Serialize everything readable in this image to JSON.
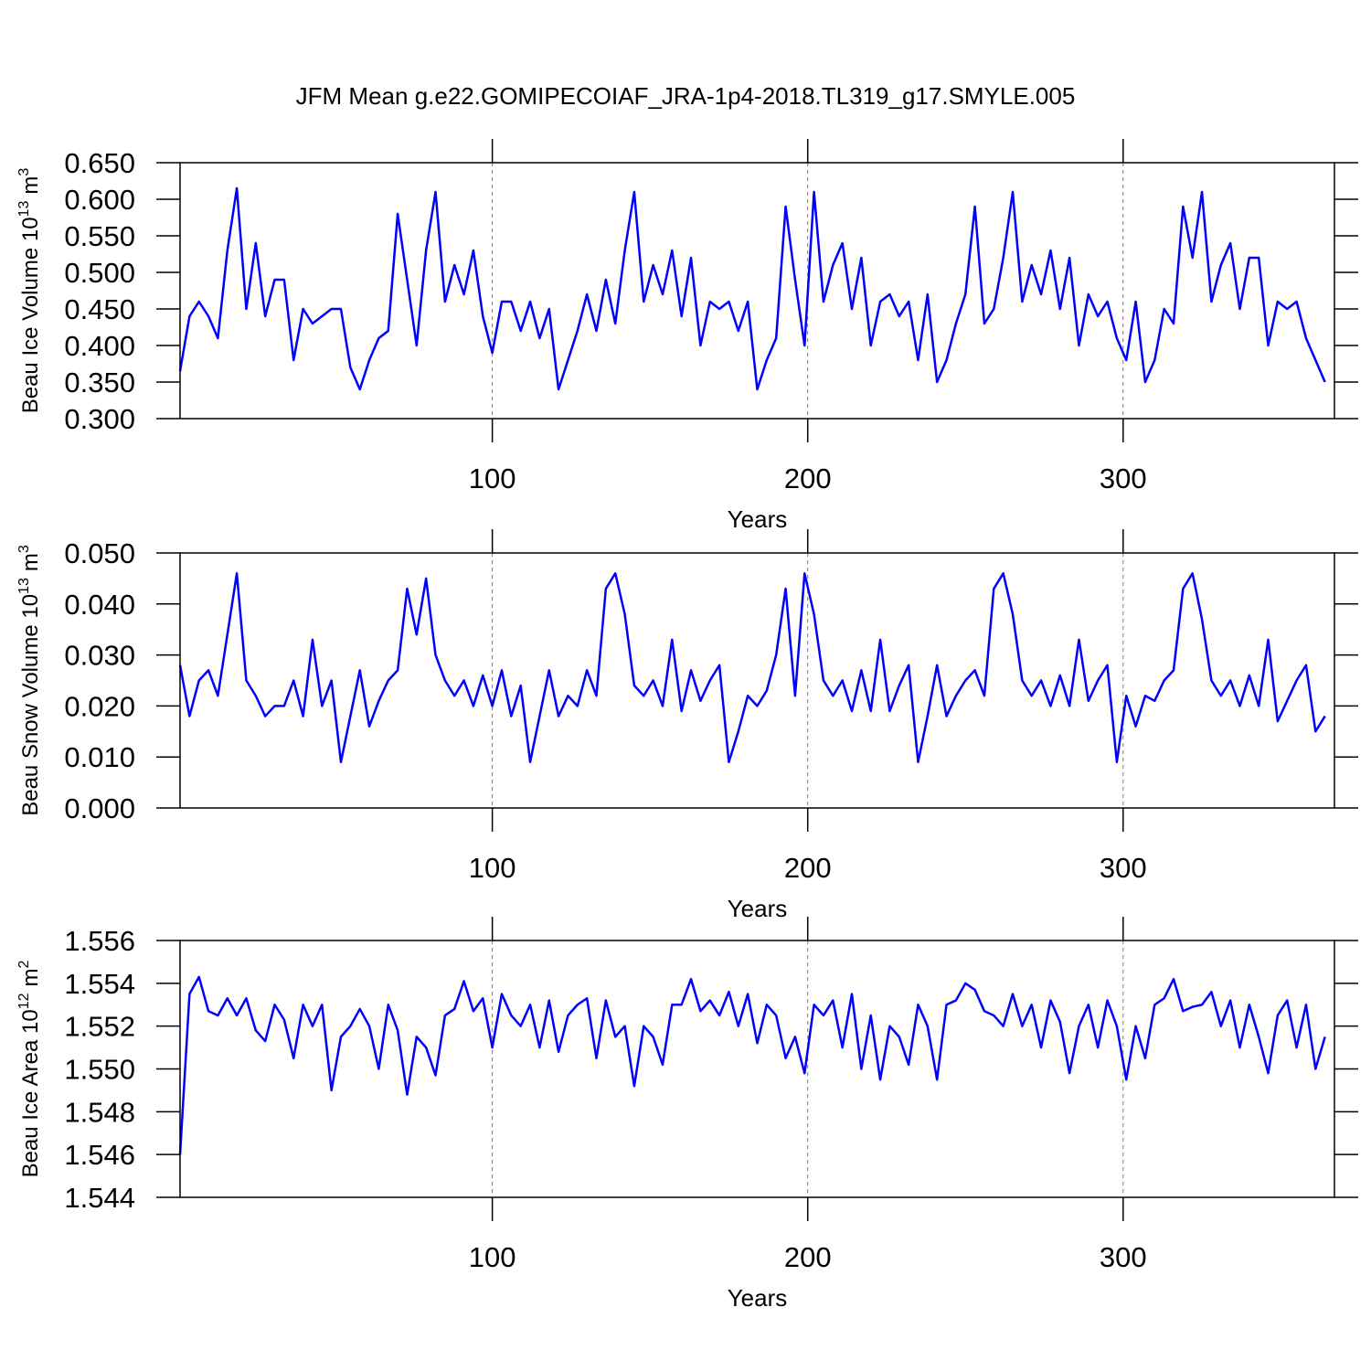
{
  "title": "JFM Mean g.e22.GOMIPECOIAF_JRA-1p4-2018.TL319_g17.SMYLE.005",
  "chart_data": [
    {
      "type": "line",
      "xlabel": "Years",
      "ylabel": "Beau Ice Volume 10",
      "ylabel_power": "13",
      "ylabel_unit": "m",
      "ylabel_unit_power": "3",
      "xlim": [
        1,
        367
      ],
      "xticks": [
        100,
        200,
        300
      ],
      "xgrid": true,
      "ylim": [
        0.3,
        0.65
      ],
      "yticks": [
        {
          "value": 0.3,
          "label": "0.300"
        },
        {
          "value": 0.35,
          "label": "0.350"
        },
        {
          "value": 0.4,
          "label": "0.400"
        },
        {
          "value": 0.45,
          "label": "0.450"
        },
        {
          "value": 0.5,
          "label": "0.500"
        },
        {
          "value": 0.55,
          "label": "0.550"
        },
        {
          "value": 0.6,
          "label": "0.600"
        },
        {
          "value": 0.65,
          "label": "0.650"
        }
      ],
      "x": [
        1,
        4,
        7,
        10,
        13,
        16,
        19,
        22,
        25,
        28,
        31,
        34,
        37,
        40,
        43,
        46,
        49,
        52,
        55,
        58,
        61,
        64,
        67,
        70,
        73,
        76,
        79,
        82,
        85,
        88,
        91,
        94,
        97,
        100,
        103,
        106,
        109,
        112,
        115,
        118,
        121,
        124,
        127,
        130,
        133,
        136,
        139,
        142,
        145,
        148,
        151,
        154,
        157,
        160,
        163,
        166,
        169,
        172,
        175,
        178,
        181,
        184,
        187,
        190,
        193,
        196,
        199,
        202,
        205,
        208,
        211,
        214,
        217,
        220,
        223,
        226,
        229,
        232,
        235,
        238,
        241,
        244,
        247,
        250,
        253,
        256,
        259,
        262,
        265,
        268,
        271,
        274,
        277,
        280,
        283,
        286,
        289,
        292,
        295,
        298,
        301,
        304,
        307,
        310,
        313,
        316,
        319,
        322,
        325,
        328,
        331,
        334,
        337,
        340,
        343,
        346,
        349,
        352,
        355,
        358,
        361,
        364
      ],
      "series": [
        {
          "color": "#0000ff",
          "values": [
            0.365,
            0.44,
            0.46,
            0.44,
            0.41,
            0.53,
            0.615,
            0.45,
            0.54,
            0.44,
            0.49,
            0.49,
            0.38,
            0.45,
            0.43,
            0.44,
            0.45,
            0.45,
            0.37,
            0.34,
            0.38,
            0.41,
            0.42,
            0.58,
            0.49,
            0.4,
            0.53,
            0.61,
            0.46,
            0.51,
            0.47,
            0.53,
            0.44,
            0.39,
            0.46,
            0.46,
            0.42,
            0.46,
            0.41,
            0.45,
            0.34,
            0.38,
            0.42,
            0.47,
            0.42,
            0.49,
            0.43,
            0.53,
            0.61,
            0.46,
            0.51,
            0.47,
            0.53,
            0.44,
            0.52,
            0.4,
            0.46,
            0.45,
            0.46,
            0.42,
            0.46,
            0.34,
            0.38,
            0.41,
            0.59,
            0.49,
            0.4,
            0.61,
            0.46,
            0.51,
            0.54,
            0.45,
            0.52,
            0.4,
            0.46,
            0.47,
            0.44,
            0.46,
            0.38,
            0.47,
            0.35,
            0.38,
            0.43,
            0.47,
            0.59,
            0.43,
            0.45,
            0.52,
            0.61,
            0.46,
            0.51,
            0.47,
            0.53,
            0.45,
            0.52,
            0.4,
            0.47,
            0.44,
            0.46,
            0.41,
            0.38,
            0.46,
            0.35,
            0.38,
            0.45,
            0.43,
            0.59,
            0.52,
            0.61,
            0.46,
            0.51,
            0.54,
            0.45,
            0.52,
            0.52,
            0.4,
            0.46,
            0.45,
            0.46,
            0.41,
            0.38,
            0.35
          ]
        }
      ]
    },
    {
      "type": "line",
      "xlabel": "Years",
      "ylabel": "Beau Snow Volume 10",
      "ylabel_power": "13",
      "ylabel_unit": "m",
      "ylabel_unit_power": "3",
      "xlim": [
        1,
        367
      ],
      "xticks": [
        100,
        200,
        300
      ],
      "xgrid": true,
      "ylim": [
        0,
        0.05
      ],
      "yticks": [
        {
          "value": 0,
          "label": "0.000"
        },
        {
          "value": 0.01,
          "label": "0.010"
        },
        {
          "value": 0.02,
          "label": "0.020"
        },
        {
          "value": 0.03,
          "label": "0.030"
        },
        {
          "value": 0.04,
          "label": "0.040"
        },
        {
          "value": 0.05,
          "label": "0.050"
        }
      ],
      "x": [
        1,
        4,
        7,
        10,
        13,
        16,
        19,
        22,
        25,
        28,
        31,
        34,
        37,
        40,
        43,
        46,
        49,
        52,
        55,
        58,
        61,
        64,
        67,
        70,
        73,
        76,
        79,
        82,
        85,
        88,
        91,
        94,
        97,
        100,
        103,
        106,
        109,
        112,
        115,
        118,
        121,
        124,
        127,
        130,
        133,
        136,
        139,
        142,
        145,
        148,
        151,
        154,
        157,
        160,
        163,
        166,
        169,
        172,
        175,
        178,
        181,
        184,
        187,
        190,
        193,
        196,
        199,
        202,
        205,
        208,
        211,
        214,
        217,
        220,
        223,
        226,
        229,
        232,
        235,
        238,
        241,
        244,
        247,
        250,
        253,
        256,
        259,
        262,
        265,
        268,
        271,
        274,
        277,
        280,
        283,
        286,
        289,
        292,
        295,
        298,
        301,
        304,
        307,
        310,
        313,
        316,
        319,
        322,
        325,
        328,
        331,
        334,
        337,
        340,
        343,
        346,
        349,
        352,
        355,
        358,
        361,
        364
      ],
      "series": [
        {
          "color": "#0000ff",
          "values": [
            0.028,
            0.018,
            0.025,
            0.027,
            0.022,
            0.034,
            0.046,
            0.025,
            0.022,
            0.018,
            0.02,
            0.02,
            0.025,
            0.018,
            0.033,
            0.02,
            0.025,
            0.009,
            0.018,
            0.027,
            0.016,
            0.021,
            0.025,
            0.027,
            0.043,
            0.034,
            0.045,
            0.03,
            0.025,
            0.022,
            0.025,
            0.02,
            0.026,
            0.02,
            0.027,
            0.018,
            0.024,
            0.009,
            0.018,
            0.027,
            0.018,
            0.022,
            0.02,
            0.027,
            0.022,
            0.043,
            0.046,
            0.038,
            0.024,
            0.022,
            0.025,
            0.02,
            0.033,
            0.019,
            0.027,
            0.021,
            0.025,
            0.028,
            0.009,
            0.015,
            0.022,
            0.02,
            0.023,
            0.03,
            0.043,
            0.022,
            0.046,
            0.038,
            0.025,
            0.022,
            0.025,
            0.019,
            0.027,
            0.019,
            0.033,
            0.019,
            0.024,
            0.028,
            0.009,
            0.018,
            0.028,
            0.018,
            0.022,
            0.025,
            0.027,
            0.022,
            0.043,
            0.046,
            0.038,
            0.025,
            0.022,
            0.025,
            0.02,
            0.026,
            0.02,
            0.033,
            0.021,
            0.025,
            0.028,
            0.009,
            0.022,
            0.016,
            0.022,
            0.021,
            0.025,
            0.027,
            0.043,
            0.046,
            0.037,
            0.025,
            0.022,
            0.025,
            0.02,
            0.026,
            0.02,
            0.033,
            0.017,
            0.021,
            0.025,
            0.028,
            0.015,
            0.018
          ]
        }
      ]
    },
    {
      "type": "line",
      "xlabel": "Years",
      "ylabel": "Beau Ice Area 10",
      "ylabel_power": "12",
      "ylabel_unit": "m",
      "ylabel_unit_power": "2",
      "xlim": [
        1,
        367
      ],
      "xticks": [
        100,
        200,
        300
      ],
      "xgrid": true,
      "ylim": [
        1.544,
        1.556
      ],
      "yticks": [
        1.544,
        1.546,
        1.548,
        {
          "value": 1.55,
          "label": "1.550"
        },
        1.552,
        1.554,
        1.556
      ],
      "x": [
        1,
        4,
        7,
        10,
        13,
        16,
        19,
        22,
        25,
        28,
        31,
        34,
        37,
        40,
        43,
        46,
        49,
        52,
        55,
        58,
        61,
        64,
        67,
        70,
        73,
        76,
        79,
        82,
        85,
        88,
        91,
        94,
        97,
        100,
        103,
        106,
        109,
        112,
        115,
        118,
        121,
        124,
        127,
        130,
        133,
        136,
        139,
        142,
        145,
        148,
        151,
        154,
        157,
        160,
        163,
        166,
        169,
        172,
        175,
        178,
        181,
        184,
        187,
        190,
        193,
        196,
        199,
        202,
        205,
        208,
        211,
        214,
        217,
        220,
        223,
        226,
        229,
        232,
        235,
        238,
        241,
        244,
        247,
        250,
        253,
        256,
        259,
        262,
        265,
        268,
        271,
        274,
        277,
        280,
        283,
        286,
        289,
        292,
        295,
        298,
        301,
        304,
        307,
        310,
        313,
        316,
        319,
        322,
        325,
        328,
        331,
        334,
        337,
        340,
        343,
        346,
        349,
        352,
        355,
        358,
        361,
        364
      ],
      "series": [
        {
          "color": "#0000ff",
          "values": [
            1.546,
            1.5535,
            1.5543,
            1.5527,
            1.5525,
            1.5533,
            1.5525,
            1.5533,
            1.5518,
            1.5513,
            1.553,
            1.5523,
            1.5505,
            1.553,
            1.552,
            1.553,
            1.549,
            1.5515,
            1.552,
            1.5528,
            1.552,
            1.55,
            1.553,
            1.5518,
            1.5488,
            1.5515,
            1.551,
            1.5497,
            1.5525,
            1.5528,
            1.5541,
            1.5527,
            1.5533,
            1.551,
            1.5535,
            1.5525,
            1.552,
            1.553,
            1.551,
            1.5532,
            1.5508,
            1.5525,
            1.553,
            1.5533,
            1.5505,
            1.5532,
            1.5515,
            1.552,
            1.5492,
            1.552,
            1.5515,
            1.5502,
            1.553,
            1.553,
            1.5542,
            1.5527,
            1.5532,
            1.5525,
            1.5536,
            1.552,
            1.5535,
            1.5512,
            1.553,
            1.5525,
            1.5505,
            1.5515,
            1.5498,
            1.553,
            1.5525,
            1.5532,
            1.551,
            1.5535,
            1.55,
            1.5525,
            1.5495,
            1.552,
            1.5515,
            1.5502,
            1.553,
            1.552,
            1.5495,
            1.553,
            1.5532,
            1.554,
            1.5537,
            1.5527,
            1.5525,
            1.552,
            1.5535,
            1.552,
            1.553,
            1.551,
            1.5532,
            1.5522,
            1.5498,
            1.552,
            1.553,
            1.551,
            1.5532,
            1.552,
            1.5495,
            1.552,
            1.5505,
            1.553,
            1.5533,
            1.5542,
            1.5527,
            1.5529,
            1.553,
            1.5536,
            1.552,
            1.5532,
            1.551,
            1.553,
            1.5515,
            1.5498,
            1.5525,
            1.5532,
            1.551,
            1.553,
            1.55,
            1.5515
          ]
        }
      ]
    }
  ]
}
